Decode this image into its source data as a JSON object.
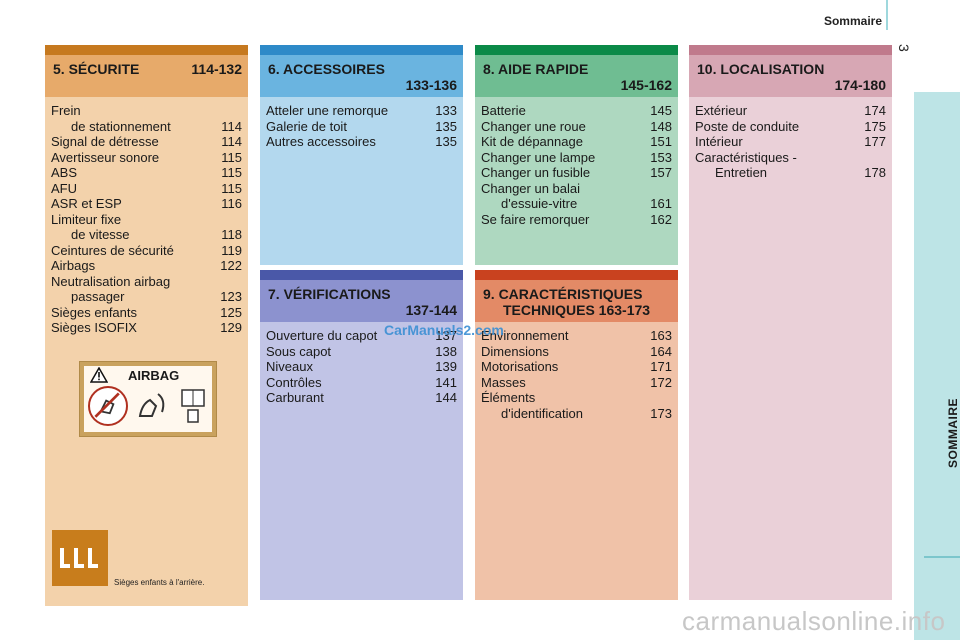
{
  "header": {
    "title": "Sommaire",
    "page_number": "3"
  },
  "side_tab": {
    "label": "SOMMAIRE"
  },
  "columns": [
    {
      "id": "securite",
      "title": "5. SÉCURITE",
      "pages": "114-132",
      "colors": {
        "bar": "#c6791f",
        "title_bg": "#e7aa6a",
        "body_bg": "#f3d2ab"
      },
      "entries": [
        {
          "label": "Frein",
          "page": ""
        },
        {
          "label": "de stationnement",
          "page": "114",
          "indent": true
        },
        {
          "label": "Signal de détresse",
          "page": "114"
        },
        {
          "label": "Avertisseur sonore",
          "page": "115"
        },
        {
          "label": "ABS",
          "page": "115"
        },
        {
          "label": "AFU",
          "page": "115"
        },
        {
          "label": "ASR et ESP",
          "page": "116"
        },
        {
          "label": "Limiteur fixe",
          "page": ""
        },
        {
          "label": "de vitesse",
          "page": "118",
          "indent": true
        },
        {
          "label": "Ceintures de sécurité",
          "page": "119"
        },
        {
          "label": "Airbags",
          "page": "122"
        },
        {
          "label": "Neutralisation airbag",
          "page": ""
        },
        {
          "label": "passager",
          "page": "123",
          "indent": true
        },
        {
          "label": "Sièges enfants",
          "page": "125"
        },
        {
          "label": "Sièges ISOFIX",
          "page": "129"
        }
      ],
      "airbag_label": {
        "text": "AIRBAG"
      },
      "seat_caption": "Sièges enfants à l'arrière."
    },
    {
      "id": "accessoires",
      "title": "6. ACCESSOIRES",
      "pages": "133-136",
      "colors": {
        "bar": "#2e8ac8",
        "title_bg": "#6ab4e0",
        "body_bg": "#b3d8ee"
      },
      "entries": [
        {
          "label": "Atteler une remorque",
          "page": "133"
        },
        {
          "label": "Galerie de toit",
          "page": "135"
        },
        {
          "label": "Autres accessoires",
          "page": "135"
        }
      ]
    },
    {
      "id": "verifications",
      "title": "7. VÉRIFICATIONS",
      "pages": "137-144",
      "colors": {
        "bar": "#4a58a8",
        "title_bg": "#8c92cf",
        "body_bg": "#c1c4e6"
      },
      "entries": [
        {
          "label": "Ouverture du capot",
          "page": "137"
        },
        {
          "label": "Sous capot",
          "page": "138"
        },
        {
          "label": "Niveaux",
          "page": "139"
        },
        {
          "label": "Contrôles",
          "page": "141"
        },
        {
          "label": "Carburant",
          "page": "144"
        }
      ]
    },
    {
      "id": "aide-rapide",
      "title": "8. AIDE RAPIDE",
      "pages": "145-162",
      "colors": {
        "bar": "#0b8a48",
        "title_bg": "#6fbd92",
        "body_bg": "#aed8c0"
      },
      "entries": [
        {
          "label": "Batterie",
          "page": "145"
        },
        {
          "label": "Changer une roue",
          "page": "148"
        },
        {
          "label": "Kit de dépannage",
          "page": "151"
        },
        {
          "label": "Changer une lampe",
          "page": "153"
        },
        {
          "label": "Changer un fusible",
          "page": "157"
        },
        {
          "label": "Changer un balai",
          "page": ""
        },
        {
          "label": "d'essuie-vitre",
          "page": "161",
          "indent": true
        },
        {
          "label": "Se faire remorquer",
          "page": "162"
        }
      ]
    },
    {
      "id": "caracteristiques",
      "title": "9. CARACTÉRISTIQUES",
      "title_line2": "TECHNIQUES 163-173",
      "pages": "",
      "colors": {
        "bar": "#c9421f",
        "title_bg": "#e38a66",
        "body_bg": "#f0c2a8"
      },
      "entries": [
        {
          "label": "Environnement",
          "page": "163"
        },
        {
          "label": "Dimensions",
          "page": "164"
        },
        {
          "label": "Motorisations",
          "page": "171"
        },
        {
          "label": "Masses",
          "page": "172"
        },
        {
          "label": "Éléments",
          "page": ""
        },
        {
          "label": "d'identification",
          "page": "173",
          "indent": true
        }
      ]
    },
    {
      "id": "localisation",
      "title": "10. LOCALISATION",
      "pages": "174-180",
      "colors": {
        "bar": "#c07a8c",
        "title_bg": "#d7a7b4",
        "body_bg": "#ead0d8"
      },
      "entries": [
        {
          "label": "Extérieur",
          "page": "174"
        },
        {
          "label": "Poste de conduite",
          "page": "175"
        },
        {
          "label": "Intérieur",
          "page": "177"
        },
        {
          "label": "Caractéristiques -",
          "page": ""
        },
        {
          "label": "Entretien",
          "page": "178",
          "indent": true
        }
      ]
    }
  ],
  "watermark": "CarManuals2.com",
  "footer_watermark": "carmanualsonline.info"
}
